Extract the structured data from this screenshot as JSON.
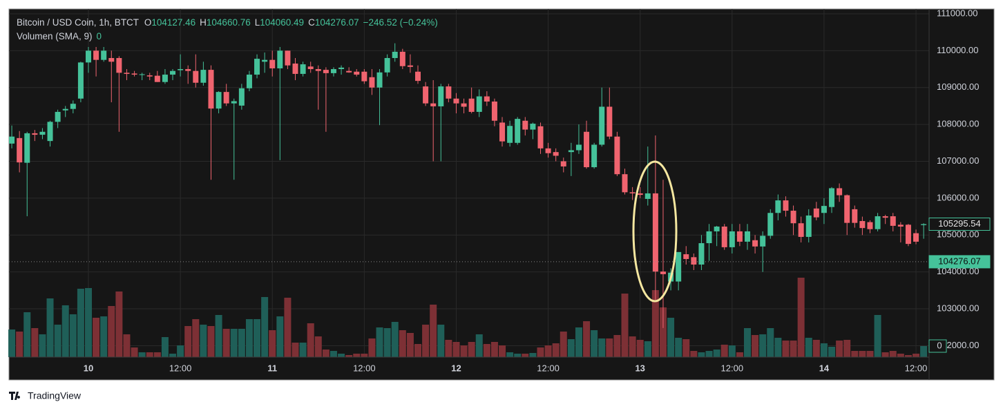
{
  "chart_data": {
    "type": "candlestick",
    "title": "Bitcoin / USD Coin, 1h, BTCT",
    "ohlc_legend": [
      {
        "label": "O",
        "value": 104127.46
      },
      {
        "label": "H",
        "value": 104660.76
      },
      {
        "label": "L",
        "value": 104060.49
      },
      {
        "label": "C",
        "value": 104276.07
      }
    ],
    "change": "−246.52 (−0.24%)",
    "volume_title": "Volumen (SMA, 9)",
    "volume_last": 0,
    "categories": [
      null,
      null,
      null,
      null,
      null,
      null,
      null,
      null,
      null,
      null,
      "10",
      null,
      null,
      null,
      null,
      null,
      null,
      null,
      null,
      null,
      null,
      null,
      "12:00",
      null,
      null,
      null,
      null,
      null,
      null,
      null,
      null,
      null,
      null,
      null,
      "11",
      null,
      null,
      null,
      null,
      null,
      null,
      null,
      null,
      null,
      null,
      null,
      "12:00",
      null,
      null,
      null,
      null,
      null,
      null,
      null,
      null,
      null,
      null,
      null,
      "12",
      null,
      null,
      null,
      null,
      null,
      null,
      null,
      null,
      null,
      null,
      null,
      "12:00",
      null,
      null,
      null,
      null,
      null,
      null,
      null,
      null,
      null,
      null,
      null,
      "13",
      null,
      null,
      null,
      null,
      null,
      null,
      null,
      null,
      null,
      null,
      null,
      "12:00",
      null,
      null,
      null,
      null,
      null,
      null,
      null,
      null,
      null,
      null,
      null,
      "14",
      null,
      null,
      null,
      null,
      null,
      null,
      null,
      null,
      null,
      null,
      null,
      "12:00",
      null
    ],
    "open": [
      107480,
      107630,
      106960,
      107760,
      107720,
      107550,
      108070,
      108380,
      108420,
      108700,
      109680,
      110000,
      109750,
      109800,
      109800,
      109400,
      109380,
      109340,
      109330,
      109320,
      109150,
      109350,
      109470,
      109500,
      109450,
      109130,
      109480,
      108430,
      108880,
      108570,
      108510,
      108980,
      109350,
      109700,
      109750,
      109520,
      110000,
      109650,
      109370,
      109570,
      109500,
      109480,
      109390,
      109500,
      109450,
      109430,
      109430,
      109280,
      109000,
      109410,
      109800,
      109970,
      109600,
      109430,
      109030,
      108570,
      108490,
      109030,
      108700,
      108570,
      108700,
      108340,
      108760,
      108620,
      108050,
      107500,
      107500,
      108100,
      107860,
      107950,
      107350,
      107250,
      107000,
      107250,
      107300,
      107800,
      106840,
      107450,
      108480,
      107670,
      106650,
      106160,
      106130,
      105980,
      106130,
      104010,
      103740,
      103740,
      104480,
      104400,
      104200,
      104780,
      105100,
      105230,
      104670,
      105100,
      104820,
      104860,
      104690,
      104980,
      105600,
      105940,
      105660,
      105320,
      104950,
      105720,
      105600,
      105760,
      106270,
      106080,
      105700,
      105380,
      105350,
      105160,
      105510,
      105510,
      105280,
      105280,
      105050,
      105270
    ],
    "high": [
      107970,
      107820,
      107800,
      107850,
      107900,
      108100,
      108400,
      108500,
      108650,
      109700,
      110100,
      110100,
      110100,
      110000,
      109850,
      109500,
      109450,
      109400,
      109400,
      109450,
      109500,
      109500,
      109900,
      109600,
      109900,
      109700,
      109600,
      108900,
      109100,
      108700,
      109100,
      109450,
      109900,
      109950,
      110000,
      110100,
      110000,
      109800,
      109700,
      109700,
      109600,
      109550,
      109550,
      109600,
      109550,
      109500,
      109500,
      109500,
      109500,
      109900,
      110200,
      110050,
      109900,
      109600,
      109150,
      109200,
      109100,
      109100,
      108850,
      108700,
      109000,
      108950,
      108900,
      108700,
      108200,
      108100,
      108200,
      108200,
      108050,
      108050,
      107500,
      107350,
      107100,
      107500,
      108000,
      108100,
      107500,
      109000,
      109000,
      107800,
      106800,
      106300,
      106300,
      107400,
      107700,
      106500,
      104100,
      104500,
      104700,
      104500,
      105000,
      105300,
      105250,
      105300,
      105300,
      105300,
      105300,
      105000,
      105100,
      105700,
      106100,
      106050,
      105800,
      105500,
      105700,
      105900,
      106000,
      106300,
      106400,
      106100,
      105800,
      105500,
      105400,
      105600,
      105550,
      105600,
      105350,
      105300,
      105150,
      105320
    ],
    "low": [
      107350,
      106700,
      105510,
      107550,
      107600,
      107400,
      107900,
      108200,
      108300,
      108600,
      109400,
      109300,
      109700,
      108600,
      107800,
      109200,
      109300,
      109200,
      109200,
      109150,
      109100,
      109200,
      109300,
      109100,
      109000,
      109050,
      106500,
      108300,
      108500,
      106500,
      108400,
      108900,
      109250,
      109400,
      109300,
      107030,
      109500,
      109200,
      109300,
      109400,
      108400,
      107800,
      109300,
      109350,
      109400,
      109300,
      109100,
      108800,
      107980,
      109300,
      109700,
      109500,
      109400,
      109100,
      108500,
      107000,
      107000,
      108600,
      108300,
      108300,
      108300,
      108200,
      108500,
      107950,
      107400,
      107400,
      107450,
      107700,
      107600,
      107200,
      107100,
      107000,
      106700,
      106600,
      107200,
      106800,
      106800,
      107400,
      107600,
      106600,
      106100,
      105950,
      106000,
      105800,
      103250,
      102480,
      103500,
      103500,
      104200,
      104050,
      104050,
      104300,
      104700,
      104600,
      104500,
      104700,
      104600,
      104500,
      104000,
      104900,
      105400,
      105500,
      105000,
      104800,
      104800,
      105400,
      105300,
      105600,
      105900,
      105000,
      105200,
      105000,
      105050,
      105100,
      105300,
      105100,
      104800,
      104700,
      104750,
      104900
    ],
    "close": [
      107670,
      106970,
      107760,
      107720,
      107800,
      108070,
      108340,
      108420,
      108560,
      109680,
      110000,
      109750,
      110000,
      109700,
      109400,
      109370,
      109350,
      109360,
      109300,
      109150,
      109350,
      109450,
      109500,
      109450,
      109130,
      109480,
      108430,
      108880,
      108570,
      108630,
      108980,
      109350,
      109780,
      109750,
      109520,
      110000,
      109600,
      109370,
      109630,
      109500,
      109450,
      109390,
      109500,
      109540,
      109410,
      109350,
      109170,
      109000,
      109410,
      109800,
      109970,
      109580,
      109560,
      109180,
      108570,
      108490,
      109030,
      108700,
      108570,
      108480,
      108340,
      108760,
      108620,
      108100,
      107540,
      107960,
      108150,
      107860,
      108020,
      107350,
      107220,
      107150,
      106860,
      107300,
      107450,
      106840,
      107450,
      108480,
      107670,
      106650,
      106160,
      106130,
      106090,
      106130,
      104010,
      103940,
      103980,
      104540,
      104350,
      104200,
      104780,
      105100,
      105230,
      104670,
      105100,
      104820,
      105100,
      104690,
      104980,
      105600,
      105940,
      105660,
      105320,
      104950,
      105530,
      105480,
      105790,
      106270,
      106080,
      105330,
      105330,
      105190,
      105160,
      105510,
      105470,
      105250,
      105230,
      104760,
      104820,
      105295.54
    ],
    "volume": [
      40,
      37,
      65,
      42,
      33,
      85,
      47,
      75,
      62,
      99,
      100,
      57,
      59,
      74,
      95,
      33,
      14,
      7,
      7,
      7,
      29,
      5,
      17,
      45,
      55,
      47,
      45,
      61,
      41,
      41,
      41,
      55,
      55,
      87,
      39,
      59,
      86,
      21,
      21,
      49,
      30,
      11,
      9,
      5,
      3,
      5,
      5,
      27,
      43,
      42,
      51,
      39,
      35,
      19,
      47,
      76,
      47,
      25,
      22,
      17,
      22,
      33,
      19,
      22,
      17,
      7,
      5,
      5,
      6,
      14,
      17,
      20,
      37,
      26,
      43,
      52,
      39,
      27,
      27,
      32,
      92,
      30,
      25,
      23,
      97,
      72,
      57,
      28,
      26,
      9,
      7,
      9,
      11,
      18,
      17,
      7,
      42,
      32,
      33,
      42,
      28,
      24,
      24,
      115,
      28,
      25,
      20,
      15,
      24,
      25,
      9,
      9,
      9,
      61,
      7,
      9,
      5,
      3,
      5,
      16
    ],
    "up_color": "#45c29a",
    "down_color": "#f0646f",
    "volume_up_color": "#1f5f58",
    "volume_down_color": "#7d3035",
    "ylim": [
      101690,
      111130
    ],
    "yticks": [
      {
        "value": 102000,
        "label": "102000.00"
      },
      {
        "value": 103000,
        "label": "103000.00"
      },
      {
        "value": 104000,
        "label": "104000.00"
      },
      {
        "value": 105000,
        "label": "105000.00"
      },
      {
        "value": 106000,
        "label": "106000.00"
      },
      {
        "value": 107000,
        "label": "107000.00"
      },
      {
        "value": 108000,
        "label": "108000.00"
      },
      {
        "value": 109000,
        "label": "109000.00"
      },
      {
        "value": 110000,
        "label": "110000.00"
      },
      {
        "value": 111000,
        "label": "111000.00"
      }
    ],
    "price_labels": [
      {
        "value": 105295.54,
        "style": "outline"
      },
      {
        "value": 104276.07,
        "style": "filled"
      }
    ],
    "last_price_line": 104276.07,
    "grid": true,
    "branding": "TradingView"
  }
}
